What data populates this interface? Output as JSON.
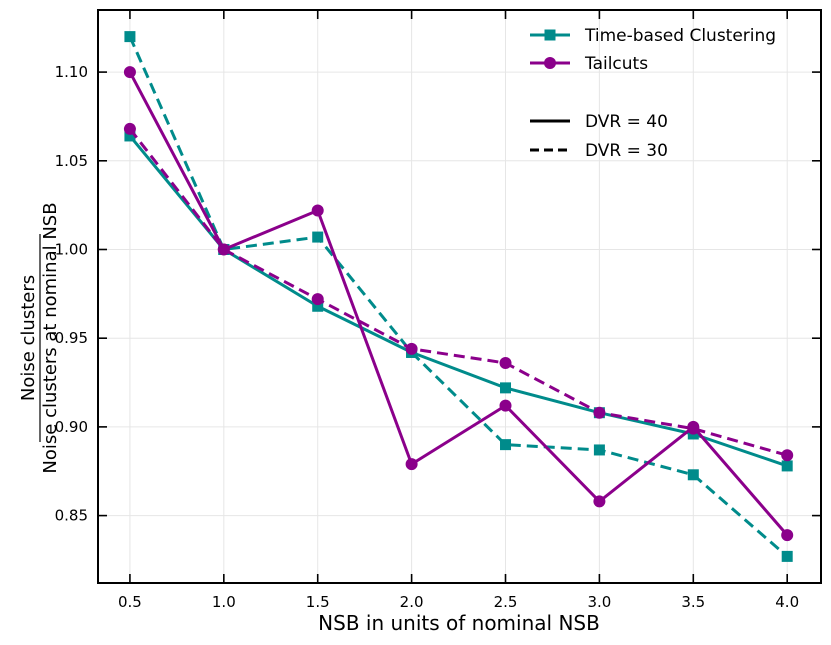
{
  "chart_data": {
    "type": "line",
    "xlabel": "NSB in units of nominal NSB",
    "ylabel_numerator": "Noise clusters",
    "ylabel_denominator": "Noise clusters at nominal NSB",
    "xlim": [
      0.33,
      4.18
    ],
    "ylim": [
      0.812,
      1.135
    ],
    "xticks": [
      0.5,
      1.0,
      1.5,
      2.0,
      2.5,
      3.0,
      3.5,
      4.0
    ],
    "xtick_labels": [
      "0.5",
      "1.0",
      "1.5",
      "2.0",
      "2.5",
      "3.0",
      "3.5",
      "4.0"
    ],
    "yticks": [
      0.85,
      0.9,
      0.95,
      1.0,
      1.05,
      1.1
    ],
    "ytick_labels": [
      "0.85",
      "0.90",
      "0.95",
      "1.00",
      "1.05",
      "1.10"
    ],
    "grid": true,
    "x": [
      0.5,
      1.0,
      1.5,
      2.0,
      2.5,
      3.0,
      3.5,
      4.0
    ],
    "series": [
      {
        "name": "Time-based Clustering",
        "dvr": "DVR = 40",
        "color": "#008b8b",
        "marker": "square",
        "linestyle": "solid",
        "values": [
          1.064,
          1.0,
          0.968,
          0.942,
          0.922,
          0.908,
          0.896,
          0.878
        ]
      },
      {
        "name": "Time-based Clustering",
        "dvr": "DVR = 30",
        "color": "#008b8b",
        "marker": "square",
        "linestyle": "dashed",
        "values": [
          1.12,
          1.0,
          1.007,
          0.942,
          0.89,
          0.887,
          0.873,
          0.827
        ]
      },
      {
        "name": "Tailcuts",
        "dvr": "DVR = 40",
        "color": "#8b008b",
        "marker": "circle",
        "linestyle": "solid",
        "values": [
          1.1,
          1.0,
          1.022,
          0.879,
          0.912,
          0.858,
          0.9,
          0.839
        ]
      },
      {
        "name": "Tailcuts",
        "dvr": "DVR = 30",
        "color": "#8b008b",
        "marker": "circle",
        "linestyle": "dashed",
        "values": [
          1.068,
          1.0,
          0.972,
          0.944,
          0.936,
          0.908,
          0.899,
          0.884
        ]
      }
    ],
    "legend": {
      "placement": "top-right",
      "method_entries": [
        {
          "label": "Time-based Clustering",
          "color": "#008b8b",
          "marker": "square"
        },
        {
          "label": "Tailcuts",
          "color": "#8b008b",
          "marker": "circle"
        }
      ],
      "style_entries": [
        {
          "label": "DVR = 40",
          "linestyle": "solid"
        },
        {
          "label": "DVR = 30",
          "linestyle": "dashed"
        }
      ]
    }
  }
}
